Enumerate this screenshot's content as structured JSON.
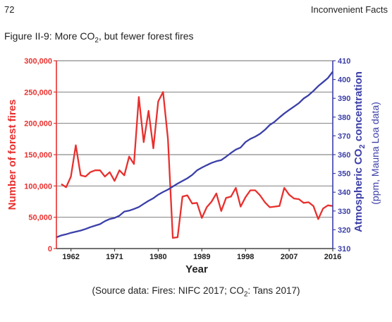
{
  "header": {
    "page_number": "72",
    "running_head": "Inconvenient Facts"
  },
  "figure": {
    "caption_prefix": "Figure II-9: More CO",
    "caption_sub": "2",
    "caption_suffix": ", but fewer forest fires"
  },
  "source": {
    "prefix": "(Source data: Fires: NIFC 2017; CO",
    "sub": "2",
    "suffix": ": Tans 2017)"
  },
  "chart_data": {
    "type": "line",
    "xlabel": "Year",
    "ylabel_left": "Number of forest fires",
    "ylabel_right_line1_prefix": "Atmospheric CO",
    "ylabel_right_line1_sub": "2",
    "ylabel_right_line1_suffix": " concentration",
    "ylabel_right_line2": "(ppm, Mauna Loa data)",
    "xlim": [
      1959,
      2016
    ],
    "ylim_left": [
      0,
      300000
    ],
    "ylim_right": [
      310,
      410
    ],
    "x_ticks": [
      1962,
      1971,
      1980,
      1989,
      1998,
      2007,
      2016
    ],
    "y_left_ticks": [
      "0",
      "50,000",
      "100,000",
      "150,000",
      "200,000",
      "250,000",
      "300,000"
    ],
    "y_left_tick_values": [
      0,
      50000,
      100000,
      150000,
      200000,
      250000,
      300000
    ],
    "y_right_ticks": [
      "310",
      "320",
      "330",
      "340",
      "350",
      "360",
      "370",
      "380",
      "390",
      "400",
      "410"
    ],
    "y_right_tick_values": [
      310,
      320,
      330,
      340,
      350,
      360,
      370,
      380,
      390,
      400,
      410
    ],
    "grid": "horizontal",
    "colors": {
      "fires": "#e8302e",
      "co2": "#3b3fa8",
      "left_axis": "#e8302e",
      "right_axis": "#3b3fa8"
    },
    "series": [
      {
        "axis": "left",
        "x": [
          1960,
          1961,
          1962,
          1963,
          1964,
          1965,
          1966,
          1967,
          1968,
          1969,
          1970,
          1971,
          1972,
          1973,
          1974,
          1975,
          1976,
          1977,
          1978,
          1979,
          1980,
          1981,
          1982,
          1983,
          1984,
          1985,
          1986,
          1987,
          1988,
          1989,
          1990,
          1991,
          1992,
          1993,
          1994,
          1995,
          1996,
          1997,
          1998,
          1999,
          2000,
          2001,
          2002,
          2003,
          2004,
          2005,
          2006,
          2007,
          2008,
          2009,
          2010,
          2011,
          2012,
          2013,
          2014,
          2015,
          2016
        ],
        "values": [
          103000,
          98000,
          115000,
          165000,
          117000,
          115000,
          122000,
          125000,
          125000,
          115000,
          122000,
          108000,
          125000,
          117000,
          147000,
          135000,
          242000,
          170000,
          220000,
          160000,
          235000,
          250000,
          175000,
          17000,
          18000,
          83000,
          85000,
          72000,
          73000,
          49000,
          66000,
          75000,
          88000,
          60000,
          81000,
          83000,
          97000,
          67000,
          82000,
          93000,
          93000,
          85000,
          74000,
          66000,
          67000,
          68000,
          97000,
          86000,
          80000,
          79000,
          73000,
          74000,
          68000,
          47000,
          64000,
          69000,
          68000
        ]
      },
      {
        "axis": "right",
        "x": [
          1959,
          1960,
          1961,
          1962,
          1963,
          1964,
          1965,
          1966,
          1967,
          1968,
          1969,
          1970,
          1971,
          1972,
          1973,
          1974,
          1975,
          1976,
          1977,
          1978,
          1979,
          1980,
          1981,
          1982,
          1983,
          1984,
          1985,
          1986,
          1987,
          1988,
          1989,
          1990,
          1991,
          1992,
          1993,
          1994,
          1995,
          1996,
          1997,
          1998,
          1999,
          2000,
          2001,
          2002,
          2003,
          2004,
          2005,
          2006,
          2007,
          2008,
          2009,
          2010,
          2011,
          2012,
          2013,
          2014,
          2015,
          2016
        ],
        "values": [
          316,
          317,
          317.6,
          318.4,
          319,
          319.6,
          320.4,
          321.4,
          322.2,
          323,
          324.6,
          325.7,
          326.3,
          327.5,
          329.7,
          330.2,
          331.1,
          332.1,
          333.8,
          335.4,
          336.8,
          338.7,
          340.1,
          341.4,
          343,
          344.6,
          346,
          347.4,
          349.2,
          351.6,
          353.1,
          354.4,
          355.6,
          356.5,
          357.1,
          358.9,
          360.9,
          362.7,
          363.8,
          366.7,
          368.4,
          369.6,
          371.1,
          373.2,
          375.8,
          377.5,
          379.8,
          381.9,
          383.8,
          385.6,
          387.4,
          389.9,
          391.6,
          393.9,
          396.5,
          398.6,
          400.8,
          404.2
        ]
      }
    ]
  }
}
